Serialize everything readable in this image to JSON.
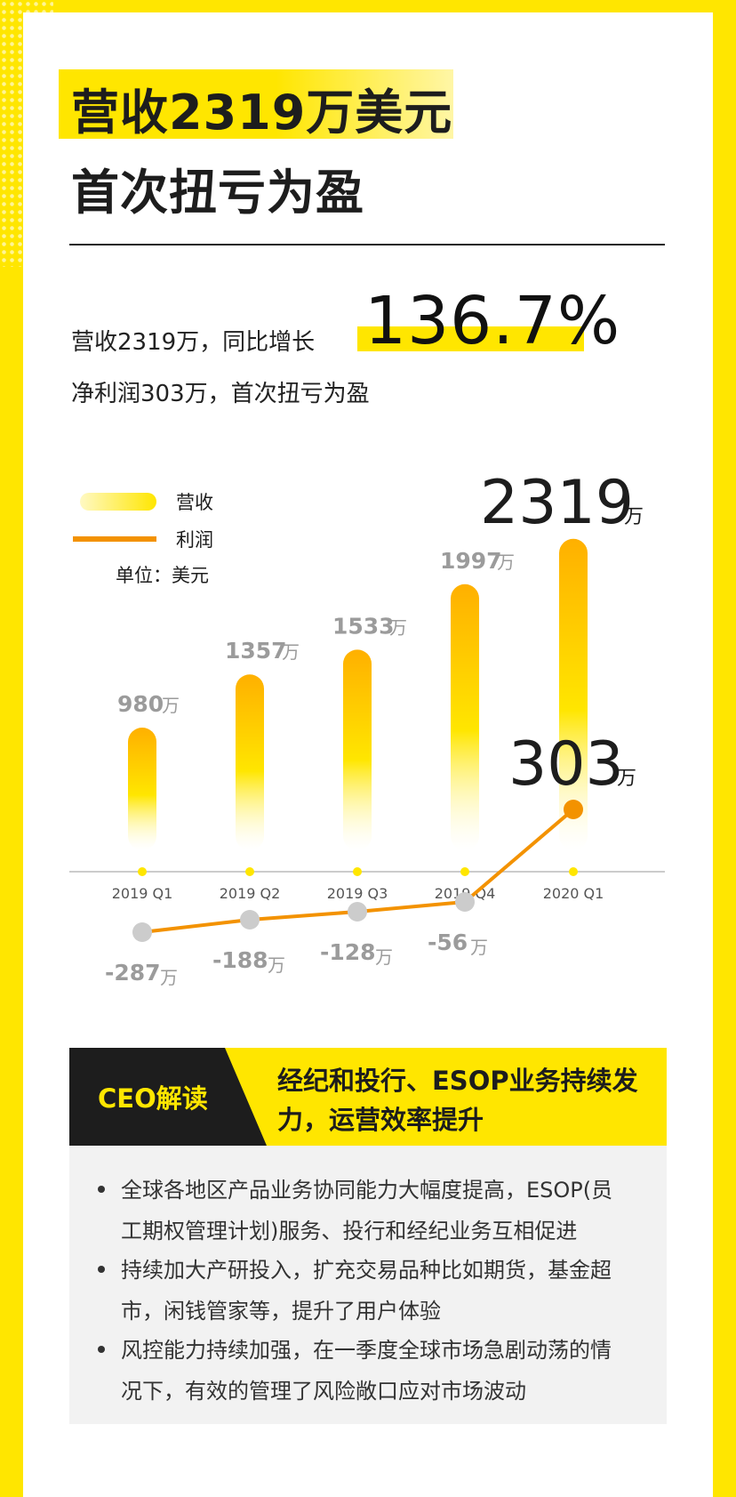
{
  "header": {
    "title_line1": "营收2319万美元",
    "title_line2": "首次扭亏为盈"
  },
  "summary": {
    "line1_prefix": "营收2319万，同比增长",
    "growth": "136.7%",
    "line2": "净利润303万，首次扭亏为盈"
  },
  "legend": {
    "revenue": "营收",
    "profit": "利润",
    "unit": "单位：美元"
  },
  "chart_data": {
    "type": "bar+line",
    "categories": [
      "2019 Q1",
      "2019 Q2",
      "2019 Q3",
      "2019 Q4",
      "2020 Q1"
    ],
    "series": [
      {
        "name": "营收",
        "type": "bar",
        "values": [
          980,
          1357,
          1533,
          1997,
          2319
        ],
        "labels": [
          "980",
          "1357",
          "1533",
          "1997",
          "2319"
        ]
      },
      {
        "name": "利润",
        "type": "line",
        "values": [
          -287,
          -188,
          -128,
          -56,
          303
        ],
        "labels": [
          "-287",
          "-188",
          "-128",
          "-56",
          "303"
        ]
      }
    ],
    "unit_suffix": "万",
    "colors": {
      "bar_top": "#ffb000",
      "bar_bottom": "#ffe600",
      "line": "#f39200",
      "point_neg": "#cccccc",
      "point_pos": "#f39200",
      "axis": "#bbbbbb",
      "axis_dot": "#ffe600",
      "label_gray": "#9b9b9b",
      "label_dark": "#1d1d1d"
    }
  },
  "ceo": {
    "label": "CEO解读",
    "heading_line1": "经纪和投行、ESOP业务持续发",
    "heading_line2": "力，运营效率提升",
    "bullets": [
      {
        "line1": "全球各地区产品业务协同能力大幅度提高，ESOP(员",
        "line2": "工期权管理计划)服务、投行和经纪业务互相促进"
      },
      {
        "line1": "持续加大产研投入，扩充交易品种比如期货，基金超",
        "line2": "市，闲钱管家等，提升了用户体验"
      },
      {
        "line1": "风控能力持续加强，在一季度全球市场急剧动荡的情",
        "line2": "况下，有效的管理了风险敞口应对市场波动"
      }
    ]
  }
}
